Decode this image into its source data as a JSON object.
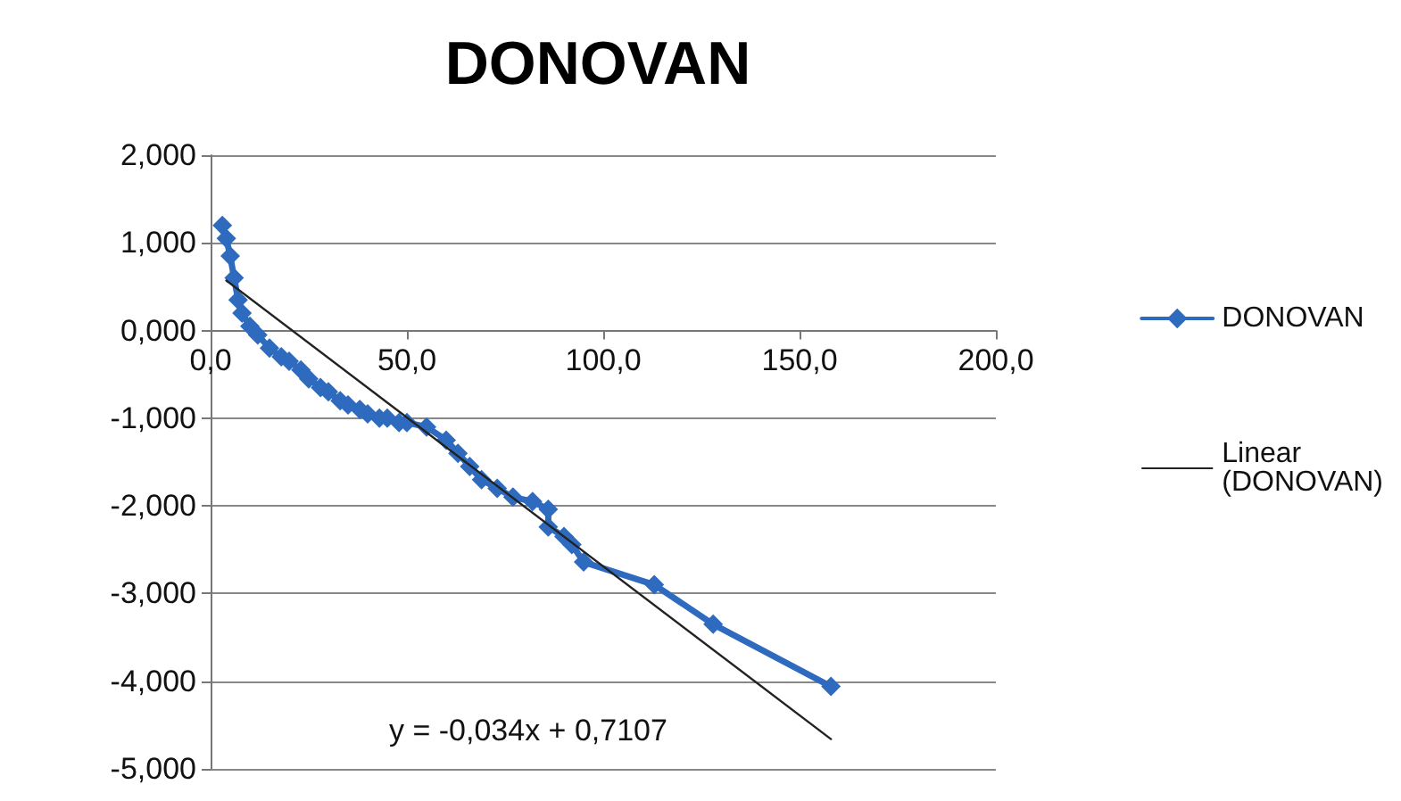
{
  "chart_data": {
    "type": "line",
    "title": "DONOVAN",
    "series": [
      {
        "name": "DONOVAN",
        "color": "#2e6bbf",
        "marker": "diamond",
        "line_style": "solid",
        "x": [
          3,
          4,
          5,
          6,
          7,
          8,
          10,
          12,
          15,
          18,
          20,
          23,
          25,
          28,
          30,
          33,
          35,
          38,
          40,
          43,
          45,
          48,
          50,
          55,
          60,
          63,
          66,
          69,
          73,
          77,
          82,
          86,
          86,
          90,
          92,
          95,
          113,
          128,
          158
        ],
        "values": [
          1.2,
          1.05,
          0.85,
          0.6,
          0.35,
          0.2,
          0.05,
          -0.05,
          -0.2,
          -0.3,
          -0.35,
          -0.45,
          -0.55,
          -0.65,
          -0.7,
          -0.8,
          -0.85,
          -0.9,
          -0.95,
          -1.0,
          -1.0,
          -1.05,
          -1.05,
          -1.1,
          -1.25,
          -1.4,
          -1.55,
          -1.7,
          -1.8,
          -1.9,
          -1.95,
          -2.04,
          -2.24,
          -2.35,
          -2.44,
          -2.64,
          -2.9,
          -3.35,
          -4.06
        ]
      },
      {
        "name": "Linear (DONOVAN)",
        "type": "line",
        "color": "#222222",
        "marker": "none",
        "line_style": "solid",
        "x": [
          4,
          158
        ],
        "values": [
          0.57,
          -4.66
        ]
      }
    ],
    "xlim": [
      0,
      200
    ],
    "xticks": [
      {
        "value": 0,
        "label": "0,0"
      },
      {
        "value": 50,
        "label": "50,0"
      },
      {
        "value": 100,
        "label": "100,0"
      },
      {
        "value": 150,
        "label": "150,0"
      },
      {
        "value": 200,
        "label": "200,0"
      }
    ],
    "ylim": [
      -5,
      2
    ],
    "yticks": [
      {
        "value": -5,
        "label": "-5,000"
      },
      {
        "value": -4,
        "label": "-4,000"
      },
      {
        "value": -3,
        "label": "-3,000"
      },
      {
        "value": -2,
        "label": "-2,000"
      },
      {
        "value": -1,
        "label": "-1,000"
      },
      {
        "value": 0,
        "label": "0,000"
      },
      {
        "value": 1,
        "label": "1,000"
      },
      {
        "value": 2,
        "label": "2,000"
      }
    ],
    "grid": "y",
    "legend": "right",
    "annotations": [
      "y = -0,034x + 0,7107"
    ]
  }
}
